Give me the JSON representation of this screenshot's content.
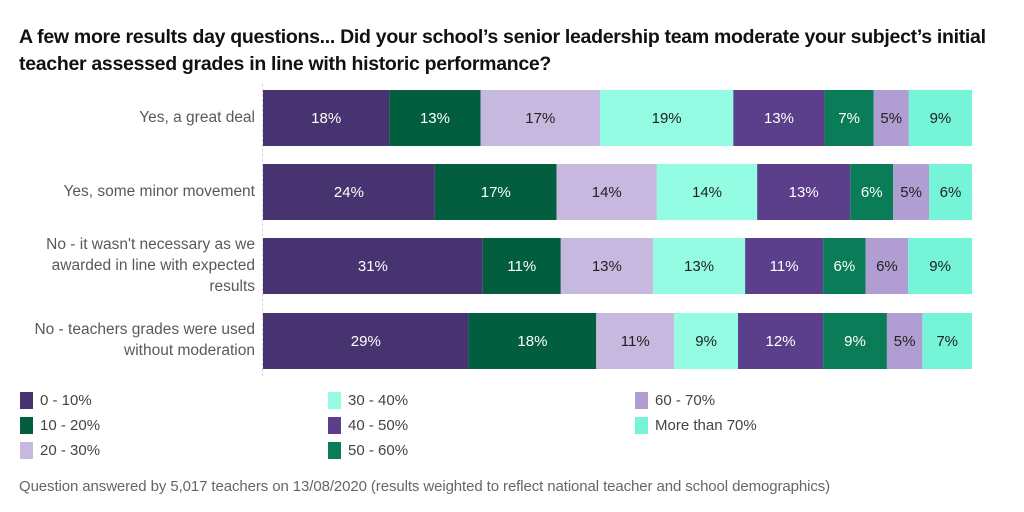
{
  "chart_data": {
    "type": "bar",
    "orientation": "horizontal",
    "stacked": true,
    "title": "A few more results day questions...  Did your school’s senior leadership team moderate your subject’s initial teacher assessed grades in line with historic performance?",
    "xlabel": "",
    "ylabel": "",
    "xlim": [
      0,
      100
    ],
    "grid": false,
    "legend_position": "bottom",
    "categories": [
      "Yes, a great deal",
      "Yes, some minor movement",
      "No - it wasn't necessary as we awarded in line with expected results",
      "No - teachers grades were used without moderation"
    ],
    "category_lines": [
      [
        "Yes, a great deal"
      ],
      [
        "Yes, some minor movement"
      ],
      [
        "No - it wasn't necessary as we",
        "awarded in line with expected",
        "results"
      ],
      [
        "No - teachers grades were used",
        "without moderation"
      ]
    ],
    "series": [
      {
        "name": "0 - 10%",
        "color": "#47336f",
        "label_color": "#ffffff",
        "values": [
          18,
          24,
          31,
          29
        ]
      },
      {
        "name": "10 - 20%",
        "color": "#035e3f",
        "label_color": "#ffffff",
        "values": [
          13,
          17,
          11,
          18
        ]
      },
      {
        "name": "20 - 30%",
        "color": "#c6b8de",
        "label_color": "#222222",
        "values": [
          17,
          14,
          13,
          11
        ]
      },
      {
        "name": "30 - 40%",
        "color": "#93fce3",
        "label_color": "#222222",
        "values": [
          19,
          14,
          13,
          9
        ]
      },
      {
        "name": "40 - 50%",
        "color": "#5b3f8b",
        "label_color": "#ffffff",
        "values": [
          13,
          13,
          11,
          12
        ]
      },
      {
        "name": "50 - 60%",
        "color": "#0b7c58",
        "label_color": "#ffffff",
        "values": [
          7,
          6,
          6,
          9
        ]
      },
      {
        "name": "60 - 70%",
        "color": "#b09dd2",
        "label_color": "#222222",
        "values": [
          5,
          5,
          6,
          5
        ]
      },
      {
        "name": "More than 70%",
        "color": "#75f4d7",
        "label_color": "#222222",
        "values": [
          9,
          6,
          9,
          7
        ]
      }
    ],
    "value_suffix": "%"
  },
  "footnote": "Question answered by 5,017 teachers on 13/08/2020 (results weighted to reflect national teacher and school demographics)"
}
